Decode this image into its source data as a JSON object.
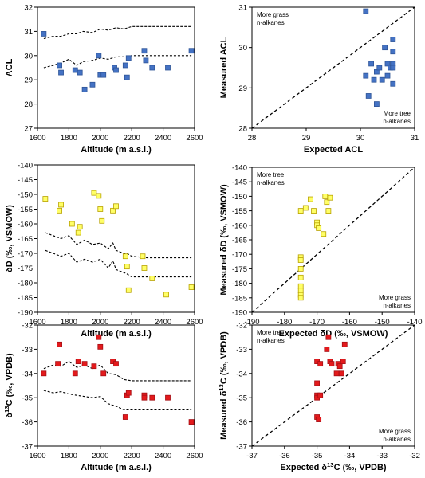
{
  "chart_data": [
    {
      "id": "acl-alt",
      "type": "scatter",
      "xlabel": "Altitude (m a.s.l.)",
      "ylabel": "ACL",
      "xlim": [
        1600,
        2600
      ],
      "ylim": [
        27,
        32
      ],
      "xticks": [
        1600,
        1800,
        2000,
        2200,
        2400,
        2600
      ],
      "yticks": [
        27,
        28,
        29,
        30,
        31,
        32
      ],
      "marker_color": "#4472C4",
      "marker_edge": "#2F5597",
      "x": [
        1640,
        1740,
        1750,
        1840,
        1870,
        1900,
        1950,
        1990,
        2000,
        2020,
        2090,
        2100,
        2160,
        2170,
        2180,
        2280,
        2290,
        2330,
        2430,
        2580
      ],
      "y": [
        30.9,
        29.6,
        29.3,
        29.4,
        29.3,
        28.6,
        28.8,
        30.0,
        29.2,
        29.2,
        29.5,
        29.4,
        29.6,
        29.1,
        29.9,
        30.2,
        29.8,
        29.5,
        29.5,
        30.2
      ],
      "envelope": [
        {
          "x": [
            1640,
            1700,
            1750,
            1800,
            1850,
            1890,
            1950,
            2000,
            2050,
            2100,
            2150,
            2200,
            2300,
            2400,
            2500,
            2580
          ],
          "y": [
            30.7,
            30.8,
            30.8,
            30.9,
            30.9,
            31.0,
            30.95,
            31.1,
            31.05,
            31.15,
            31.1,
            31.2,
            31.2,
            31.2,
            31.2,
            31.2
          ]
        },
        {
          "x": [
            1640,
            1700,
            1750,
            1800,
            1850,
            1890,
            1950,
            2000,
            2050,
            2100,
            2150,
            2200,
            2300,
            2400,
            2500,
            2580
          ],
          "y": [
            29.5,
            29.6,
            29.7,
            29.85,
            29.6,
            29.75,
            29.8,
            29.9,
            29.85,
            29.95,
            29.95,
            30.0,
            30.0,
            30.0,
            30.0,
            30.0
          ]
        }
      ],
      "grid": false
    },
    {
      "id": "acl-exp",
      "type": "scatter",
      "xlabel": "Expected ACL",
      "ylabel": "Measured ACL",
      "xlim": [
        28,
        31
      ],
      "ylim": [
        28,
        31
      ],
      "xticks": [
        28,
        29,
        30,
        31
      ],
      "yticks": [
        28,
        29,
        30,
        31
      ],
      "marker_color": "#4472C4",
      "marker_edge": "#2F5597",
      "x": [
        30.1,
        30.1,
        30.15,
        30.2,
        30.25,
        30.3,
        30.3,
        30.35,
        30.4,
        30.45,
        30.5,
        30.5,
        30.55,
        30.6,
        30.6,
        30.6,
        30.6,
        30.6
      ],
      "y": [
        30.9,
        29.3,
        28.8,
        29.6,
        29.2,
        29.4,
        28.6,
        29.5,
        29.2,
        30.0,
        29.3,
        29.6,
        29.5,
        30.2,
        29.9,
        29.6,
        29.5,
        29.1
      ],
      "one_to_one_line": true,
      "annotations": [
        {
          "lines": [
            "More grass",
            "n-alkanes"
          ],
          "corner": "top-left"
        },
        {
          "lines": [
            "More tree",
            "n-alkanes"
          ],
          "corner": "bottom-right"
        }
      ],
      "grid": false
    },
    {
      "id": "dd-alt",
      "type": "scatter",
      "xlabel": "Altitude (m a.s.l.)",
      "ylabel": "δD (‰, VSMOW)",
      "xlim": [
        1600,
        2600
      ],
      "ylim": [
        -190,
        -140
      ],
      "xticks": [
        1600,
        1800,
        2000,
        2200,
        2400,
        2600
      ],
      "yticks": [
        -140,
        -145,
        -150,
        -155,
        -160,
        -165,
        -170,
        -175,
        -180,
        -185,
        -190
      ],
      "marker_color": "#FFFF66",
      "marker_edge": "#B8A200",
      "x": [
        1650,
        1740,
        1750,
        1820,
        1860,
        1870,
        1960,
        1990,
        2000,
        2010,
        2080,
        2100,
        2160,
        2170,
        2180,
        2270,
        2280,
        2330,
        2420,
        2580
      ],
      "y": [
        -151.5,
        -155.5,
        -153.5,
        -160,
        -163,
        -161,
        -149.5,
        -150.5,
        -155,
        -159,
        -155.5,
        -154,
        -171,
        -174.5,
        -182.5,
        -171,
        -175,
        -178.5,
        -184,
        -181.5
      ],
      "envelope": [
        {
          "x": [
            1650,
            1700,
            1750,
            1800,
            1850,
            1900,
            1950,
            2000,
            2050,
            2080,
            2100,
            2150,
            2170,
            2200,
            2300,
            2400,
            2500,
            2580
          ],
          "y": [
            -163,
            -164,
            -165,
            -164,
            -167,
            -165.5,
            -167,
            -166.5,
            -168.5,
            -166.5,
            -169,
            -170,
            -170,
            -171,
            -171.5,
            -171.5,
            -171.5,
            -171.5
          ]
        },
        {
          "x": [
            1650,
            1700,
            1750,
            1800,
            1850,
            1900,
            1950,
            2000,
            2050,
            2080,
            2100,
            2150,
            2170,
            2200,
            2300,
            2400,
            2500,
            2580
          ],
          "y": [
            -169,
            -170,
            -171,
            -170,
            -173,
            -172,
            -173,
            -172,
            -175,
            -172.5,
            -175.5,
            -176.5,
            -177,
            -178,
            -178,
            -178,
            -178,
            -178
          ]
        }
      ],
      "grid": false
    },
    {
      "id": "dd-exp",
      "type": "scatter",
      "xlabel": "Expected δD (‰, VSMOW)",
      "ylabel": "Measured δD (‰, VSMOW)",
      "xlim": [
        -190,
        -140
      ],
      "ylim": [
        -190,
        -140
      ],
      "xticks": [
        -190,
        -180,
        -170,
        -160,
        -150,
        -140
      ],
      "yticks": [
        -140,
        -145,
        -150,
        -155,
        -160,
        -165,
        -170,
        -175,
        -180,
        -185,
        -190
      ],
      "marker_color": "#FFFF66",
      "marker_edge": "#B8A200",
      "x": [
        -175,
        -175,
        -175,
        -175,
        -175,
        -175,
        -175,
        -175,
        -175,
        -173.5,
        -172,
        -171,
        -170,
        -170,
        -169.5,
        -168,
        -167.5,
        -167,
        -166.5,
        -166
      ],
      "y": [
        -155,
        -171,
        -172,
        -175,
        -178,
        -181,
        -182.5,
        -184,
        -185,
        -154,
        -151,
        -155,
        -159,
        -160,
        -161,
        -163,
        -150,
        -152,
        -155,
        -150.5
      ],
      "one_to_one_line": true,
      "annotations": [
        {
          "lines": [
            "More tree",
            "n-alkanes"
          ],
          "corner": "top-left"
        },
        {
          "lines": [
            "More grass",
            "n-alkanes"
          ],
          "corner": "bottom-right"
        }
      ],
      "grid": false
    },
    {
      "id": "dc-alt",
      "type": "scatter",
      "xlabel": "Altitude (m a.s.l.)",
      "ylabel": "δ13C (‰, VPDB)",
      "xlim": [
        1600,
        2600
      ],
      "ylim": [
        -37,
        -32
      ],
      "xticks": [
        1600,
        1800,
        2000,
        2200,
        2400,
        2600
      ],
      "yticks": [
        -32,
        -33,
        -34,
        -35,
        -36,
        -37
      ],
      "marker_color": "#E31A1C",
      "marker_edge": "#A50F15",
      "x": [
        1640,
        1730,
        1740,
        1840,
        1860,
        1900,
        1960,
        1990,
        2000,
        2020,
        2080,
        2100,
        2160,
        2170,
        2180,
        2280,
        2280,
        2330,
        2430,
        2580
      ],
      "y": [
        -34.0,
        -33.6,
        -32.8,
        -34.0,
        -33.5,
        -33.6,
        -33.7,
        -32.5,
        -32.9,
        -34.0,
        -33.5,
        -33.6,
        -35.8,
        -34.9,
        -34.8,
        -34.9,
        -35.0,
        -35.0,
        -35.0,
        -36.0
      ],
      "envelope": [
        {
          "x": [
            1640,
            1700,
            1750,
            1800,
            1850,
            1900,
            1950,
            2000,
            2050,
            2100,
            2150,
            2200,
            2300,
            2400,
            2500,
            2580
          ],
          "y": [
            -33.8,
            -33.65,
            -33.7,
            -33.5,
            -33.75,
            -33.65,
            -33.8,
            -33.65,
            -34.0,
            -34.05,
            -34.25,
            -34.3,
            -34.3,
            -34.3,
            -34.3,
            -34.3
          ]
        },
        {
          "x": [
            1640,
            1700,
            1750,
            1800,
            1850,
            1900,
            1950,
            2000,
            2050,
            2100,
            2150,
            2200,
            2300,
            2400,
            2500,
            2580
          ],
          "y": [
            -34.7,
            -34.8,
            -34.75,
            -34.85,
            -34.9,
            -34.95,
            -35.0,
            -34.95,
            -35.25,
            -35.35,
            -35.5,
            -35.5,
            -35.5,
            -35.5,
            -35.5,
            -35.5
          ]
        }
      ],
      "grid": false
    },
    {
      "id": "dc-exp",
      "type": "scatter",
      "xlabel": "Expected δ13C (‰, VPDB)",
      "ylabel": "Measured δ13C (‰, VPDB)",
      "xlim": [
        -37,
        -32
      ],
      "ylim": [
        -37,
        -32
      ],
      "xticks": [
        -37,
        -36,
        -35,
        -34,
        -33,
        -32
      ],
      "yticks": [
        -32,
        -33,
        -34,
        -35,
        -36,
        -37
      ],
      "marker_color": "#E31A1C",
      "marker_edge": "#A50F15",
      "x": [
        -35.0,
        -35.0,
        -35.0,
        -35.0,
        -35.0,
        -34.95,
        -34.9,
        -34.9,
        -34.7,
        -34.65,
        -34.6,
        -34.55,
        -34.4,
        -34.35,
        -34.3,
        -34.25,
        -34.2,
        -34.15
      ],
      "y": [
        -33.5,
        -34.4,
        -34.9,
        -35.0,
        -35.8,
        -35.9,
        -33.6,
        -34.9,
        -33.0,
        -32.5,
        -33.5,
        -33.6,
        -34.0,
        -33.6,
        -33.7,
        -34.0,
        -33.5,
        -32.8
      ],
      "one_to_one_line": true,
      "annotations": [
        {
          "lines": [
            "More tree",
            "n-alkanes"
          ],
          "corner": "top-left"
        },
        {
          "lines": [
            "More grass",
            "n-alkanes"
          ],
          "corner": "bottom-right"
        }
      ],
      "grid": false
    }
  ]
}
